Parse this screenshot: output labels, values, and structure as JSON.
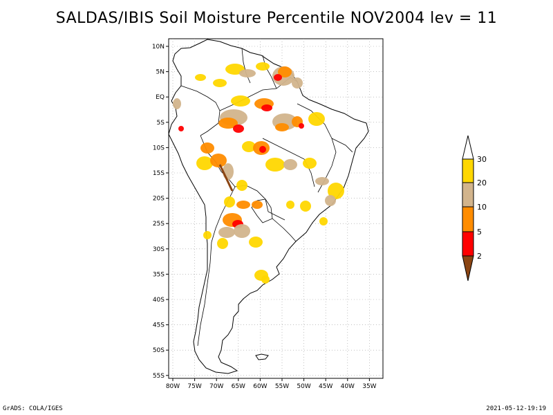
{
  "title": "SALDAS/IBIS Soil Moisture Percentile NOV2004 lev = 11",
  "map": {
    "lat_ticks": [
      "10N",
      "5N",
      "EQ",
      "5S",
      "10S",
      "15S",
      "20S",
      "25S",
      "30S",
      "35S",
      "40S",
      "45S",
      "50S",
      "55S"
    ],
    "lon_ticks": [
      "80W",
      "75W",
      "70W",
      "65W",
      "60W",
      "55W",
      "50W",
      "45W",
      "40W",
      "35W"
    ]
  },
  "colorbar": {
    "labels": [
      "30",
      "20",
      "10",
      "5",
      "2"
    ],
    "colors": {
      "above_30": "#ffffff",
      "20_30": "#ffd700",
      "10_20": "#d2b48c",
      "5_10": "#ff8c00",
      "2_5": "#ff0000",
      "below_2": "#8b4513"
    }
  },
  "footer": {
    "left": "GrADS: COLA/IGES",
    "right": "2021-05-12-19:19"
  }
}
